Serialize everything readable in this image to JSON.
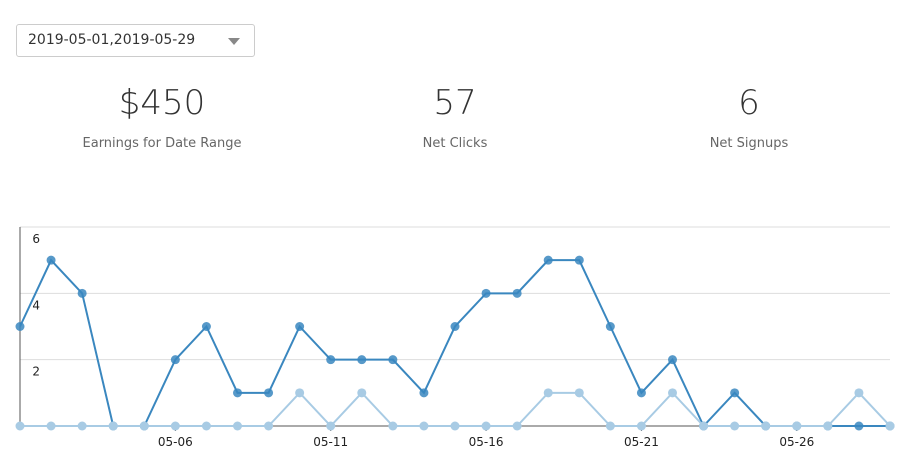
{
  "date_range": "2019-05-01,2019-05-29",
  "stats": [
    {
      "value": "$450",
      "label": "Earnings for Date Range"
    },
    {
      "value": "57",
      "label": "Net Clicks"
    },
    {
      "value": "6",
      "label": "Net Signups"
    }
  ],
  "chart_data": {
    "type": "line",
    "categories": [
      null,
      null,
      null,
      null,
      null,
      "05-06",
      null,
      null,
      null,
      null,
      "05-11",
      null,
      null,
      null,
      null,
      "05-16",
      null,
      null,
      null,
      null,
      "05-21",
      null,
      null,
      null,
      null,
      "05-26",
      null,
      null,
      null
    ],
    "series": [
      {
        "color": "#3a87bf",
        "values": [
          3,
          5,
          4,
          0,
          0,
          2,
          3,
          1,
          1,
          3,
          2,
          2,
          2,
          1,
          3,
          4,
          4,
          5,
          5,
          3,
          1,
          2,
          0,
          1,
          0,
          0,
          0,
          0,
          0
        ]
      },
      {
        "color": "#a8cbe4",
        "values": [
          0,
          0,
          0,
          0,
          0,
          0,
          0,
          0,
          0,
          1,
          0,
          1,
          0,
          0,
          0,
          0,
          0,
          1,
          1,
          0,
          0,
          1,
          0,
          0,
          0,
          0,
          0,
          1,
          0
        ]
      }
    ],
    "ylim": [
      0,
      6
    ],
    "yticks": [
      2,
      4,
      6
    ],
    "grid": true
  }
}
